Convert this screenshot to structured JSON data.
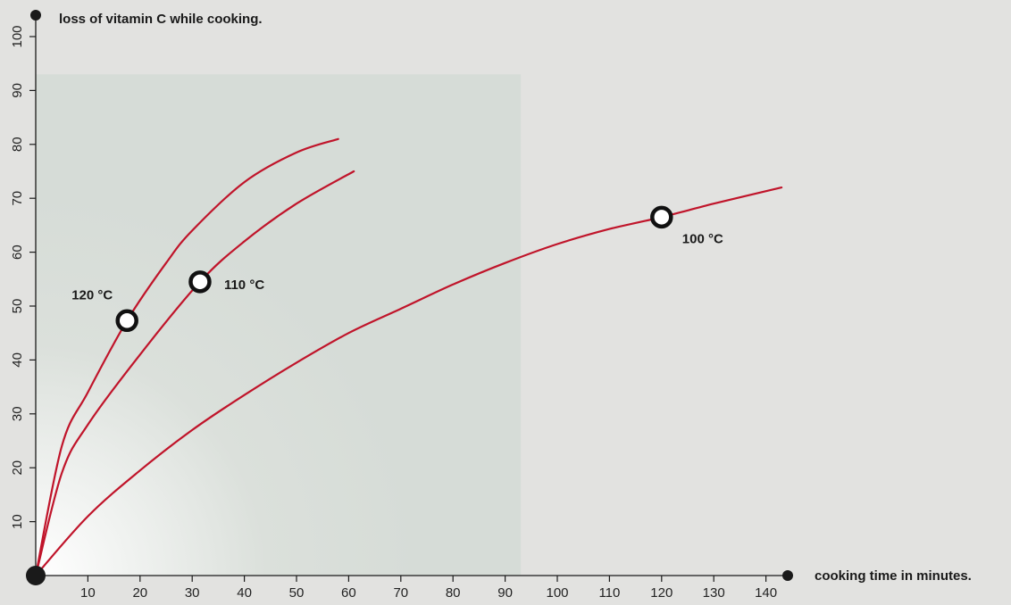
{
  "chart_data": {
    "type": "line",
    "ylabel": "loss of vitamin C while cooking.",
    "xlabel": "cooking time in minutes.",
    "xlim": [
      0,
      145
    ],
    "ylim": [
      0,
      100
    ],
    "x_ticks": [
      10,
      20,
      30,
      40,
      50,
      60,
      70,
      80,
      90,
      100,
      110,
      120,
      130,
      140
    ],
    "y_ticks": [
      10,
      20,
      30,
      40,
      50,
      60,
      70,
      80,
      90,
      100
    ],
    "grid": false,
    "highlight_region": {
      "x": [
        0,
        93
      ],
      "y": [
        0,
        93
      ]
    },
    "series": [
      {
        "name": "120 °C",
        "x": [
          0,
          5,
          10,
          17.5,
          25,
          30,
          40,
          50,
          58
        ],
        "y": [
          0,
          24,
          34,
          47.3,
          58,
          64,
          73,
          78.5,
          81
        ],
        "marker": {
          "x": 17.5,
          "y": 47.3
        }
      },
      {
        "name": "110 °C",
        "x": [
          0,
          5,
          10,
          20,
          31.5,
          40,
          50,
          61
        ],
        "y": [
          0,
          19,
          28,
          41,
          54.5,
          62,
          69,
          75
        ],
        "marker": {
          "x": 31.5,
          "y": 54.5
        }
      },
      {
        "name": "100 °C",
        "x": [
          0,
          10,
          20,
          30,
          40,
          50,
          60,
          70,
          80,
          90,
          100,
          110,
          120,
          130,
          143
        ],
        "y": [
          0,
          11,
          19.5,
          27,
          33.5,
          39.5,
          45,
          49.5,
          54,
          58,
          61.5,
          64.3,
          66.5,
          69,
          72
        ],
        "marker": {
          "x": 120,
          "y": 66.5
        }
      }
    ]
  },
  "colors": {
    "background": "#e2e2e0",
    "curve": "#c0142a",
    "axis": "#1a1a1a",
    "marker_fill": "#ffffff",
    "marker_stroke": "#111111"
  }
}
